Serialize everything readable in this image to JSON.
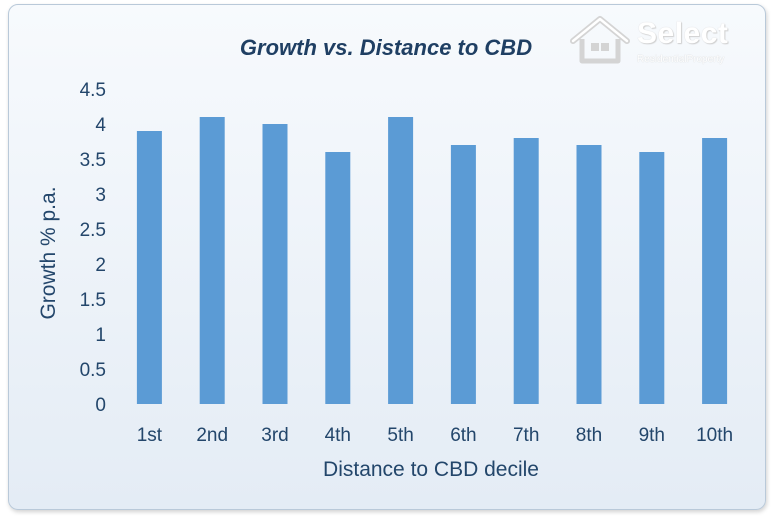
{
  "logo": {
    "brand": "Select",
    "tagline": "ResidentialProperty",
    "icon": "house-icon"
  },
  "chart_data": {
    "type": "bar",
    "title": "Growth vs. Distance to CBD",
    "xlabel": "Distance to CBD decile",
    "ylabel": "Growth % p.a.",
    "categories": [
      "1st",
      "2nd",
      "3rd",
      "4th",
      "5th",
      "6th",
      "7th",
      "8th",
      "9th",
      "10th"
    ],
    "values": [
      3.9,
      4.1,
      4.0,
      3.6,
      4.1,
      3.7,
      3.8,
      3.7,
      3.6,
      3.8
    ],
    "ylim": [
      0,
      4.5
    ],
    "yticks": [
      "0",
      "0.5",
      "1",
      "1.5",
      "2",
      "2.5",
      "3",
      "3.5",
      "4",
      "4.5"
    ],
    "grid": false,
    "legend": "none",
    "bar_color": "#5b9bd5"
  }
}
